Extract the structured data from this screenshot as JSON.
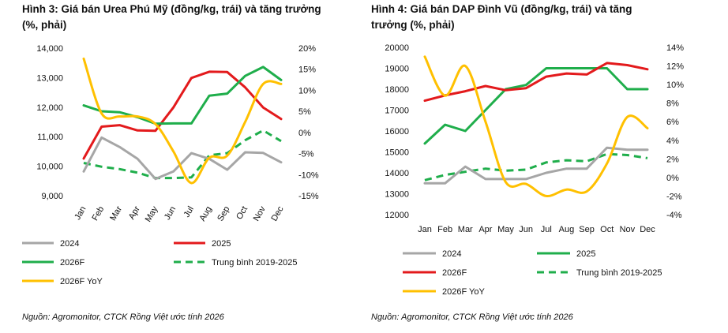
{
  "chart_data": [
    {
      "type": "line",
      "title": "Hình 3: Giá bán Urea Phú Mỹ (đồng/kg, trái) và tăng trưởng (%, phải)",
      "title_line1": "Hình 3: Giá bán Urea Phú Mỹ (đồng/kg, trái) và tăng trưởng",
      "title_line2": "(%, phải)",
      "categories": [
        "Jan",
        "Feb",
        "Mar",
        "Apr",
        "May",
        "Jun",
        "Jul",
        "Aug",
        "Sep",
        "Oct",
        "Nov",
        "Dec"
      ],
      "ylim_left": [
        9000,
        14000
      ],
      "yticks_left": [
        9000,
        10000,
        11000,
        12000,
        13000,
        14000
      ],
      "ytick_labels_left": [
        "9,000",
        "10,000",
        "11,000",
        "12,000",
        "13,000",
        "14,000"
      ],
      "ylim_right": [
        -15,
        20
      ],
      "yticks_right": [
        -15,
        -10,
        -5,
        0,
        5,
        10,
        15,
        20
      ],
      "ytick_labels_right": [
        "-15%",
        "-10%",
        "-5%",
        "0%",
        "5%",
        "10%",
        "15%",
        "20%"
      ],
      "xtick_rotation": "rotated",
      "series": [
        {
          "name": "2024",
          "color": "#a6a6a6",
          "style": "solid",
          "axis": "left",
          "values": [
            9820,
            10970,
            10650,
            10250,
            9570,
            9820,
            10440,
            10250,
            9880,
            10470,
            10450,
            10130
          ]
        },
        {
          "name": "2025",
          "color": "#e31a1c",
          "style": "solid",
          "axis": "left",
          "values": [
            10260,
            11340,
            11390,
            11210,
            11200,
            11990,
            12990,
            13200,
            13190,
            12670,
            11990,
            11600
          ]
        },
        {
          "name": "2026F",
          "color": "#1fae4b",
          "style": "solid",
          "axis": "left",
          "values": [
            12060,
            11860,
            11830,
            11660,
            11440,
            11450,
            11450,
            12390,
            12460,
            13060,
            13360,
            12920
          ]
        },
        {
          "name": "Trung bình 2019-2025",
          "color": "#1fae4b",
          "style": "dashed",
          "axis": "left",
          "values": [
            10110,
            9980,
            9900,
            9780,
            9600,
            9600,
            9620,
            10370,
            10440,
            10880,
            11210,
            10850
          ]
        },
        {
          "name": "2026F YoY",
          "color": "#ffc000",
          "style": "solid",
          "axis": "right",
          "values": [
            17.5,
            4.5,
            3.8,
            3.8,
            2.0,
            -4.5,
            -12.0,
            -6.0,
            -5.5,
            2.5,
            11.5,
            11.5
          ]
        }
      ],
      "legend": [
        "2024",
        "2025",
        "2026F",
        "Trung bình 2019-2025",
        "2026F YoY"
      ],
      "legend_position": "bottom",
      "source": "Nguồn: Agromonitor, CTCK Rồng Việt ước tính 2026"
    },
    {
      "type": "line",
      "title": "Hình 4: Giá bán DAP Đình Vũ (đồng/kg, trái) và tăng trưởng (%, phải)",
      "title_line1": "Hình 4: Giá bán DAP Đình Vũ (đồng/kg, trái) và tăng",
      "title_line2": "trưởng (%, phải)",
      "categories": [
        "Jan",
        "Feb",
        "Mar",
        "Apr",
        "May",
        "Jun",
        "Jul",
        "Aug",
        "Sep",
        "Oct",
        "Nov",
        "Dec"
      ],
      "ylim_left": [
        12000,
        20000
      ],
      "yticks_left": [
        12000,
        13000,
        14000,
        15000,
        16000,
        17000,
        18000,
        19000,
        20000
      ],
      "ytick_labels_left": [
        "12000",
        "13000",
        "14000",
        "15000",
        "16000",
        "17000",
        "18000",
        "19000",
        "20000"
      ],
      "ylim_right": [
        -4,
        14
      ],
      "yticks_right": [
        -4,
        -2,
        0,
        2,
        4,
        6,
        8,
        10,
        12,
        14
      ],
      "ytick_labels_right": [
        "-4%",
        "-2%",
        "0%",
        "2%",
        "4%",
        "6%",
        "8%",
        "10%",
        "12%",
        "14%"
      ],
      "xtick_rotation": "horizontal",
      "series": [
        {
          "name": "2024",
          "color": "#a6a6a6",
          "style": "solid",
          "axis": "left",
          "values": [
            13500,
            13500,
            14300,
            13700,
            13700,
            13700,
            14000,
            14200,
            14200,
            15200,
            15100,
            15100
          ]
        },
        {
          "name": "2025",
          "color": "#1fae4b",
          "style": "solid",
          "axis": "left",
          "values": [
            15400,
            16300,
            16000,
            17000,
            18000,
            18200,
            19000,
            19000,
            19000,
            19000,
            18000,
            18000
          ]
        },
        {
          "name": "2026F",
          "color": "#e31a1c",
          "style": "solid",
          "axis": "left",
          "values": [
            17450,
            17700,
            17900,
            18150,
            17950,
            18050,
            18600,
            18750,
            18700,
            19250,
            19150,
            18950
          ]
        },
        {
          "name": "Trung bình 2019-2025",
          "color": "#1fae4b",
          "style": "dashed",
          "axis": "left",
          "values": [
            13650,
            13900,
            14050,
            14200,
            14100,
            14150,
            14500,
            14600,
            14550,
            14900,
            14850,
            14700
          ]
        },
        {
          "name": "2026F YoY",
          "color": "#ffc000",
          "style": "solid",
          "axis": "right",
          "values": [
            13.0,
            8.8,
            12.0,
            6.0,
            -0.5,
            -0.7,
            -2.0,
            -1.3,
            -1.5,
            1.5,
            6.5,
            5.3
          ]
        }
      ],
      "legend": [
        "2024",
        "2025",
        "2026F",
        "Trung bình 2019-2025",
        "2026F YoY"
      ],
      "legend_position": "bottom",
      "source": "Nguồn: Agromonitor, CTCK Rồng Việt ước tính 2026"
    }
  ]
}
